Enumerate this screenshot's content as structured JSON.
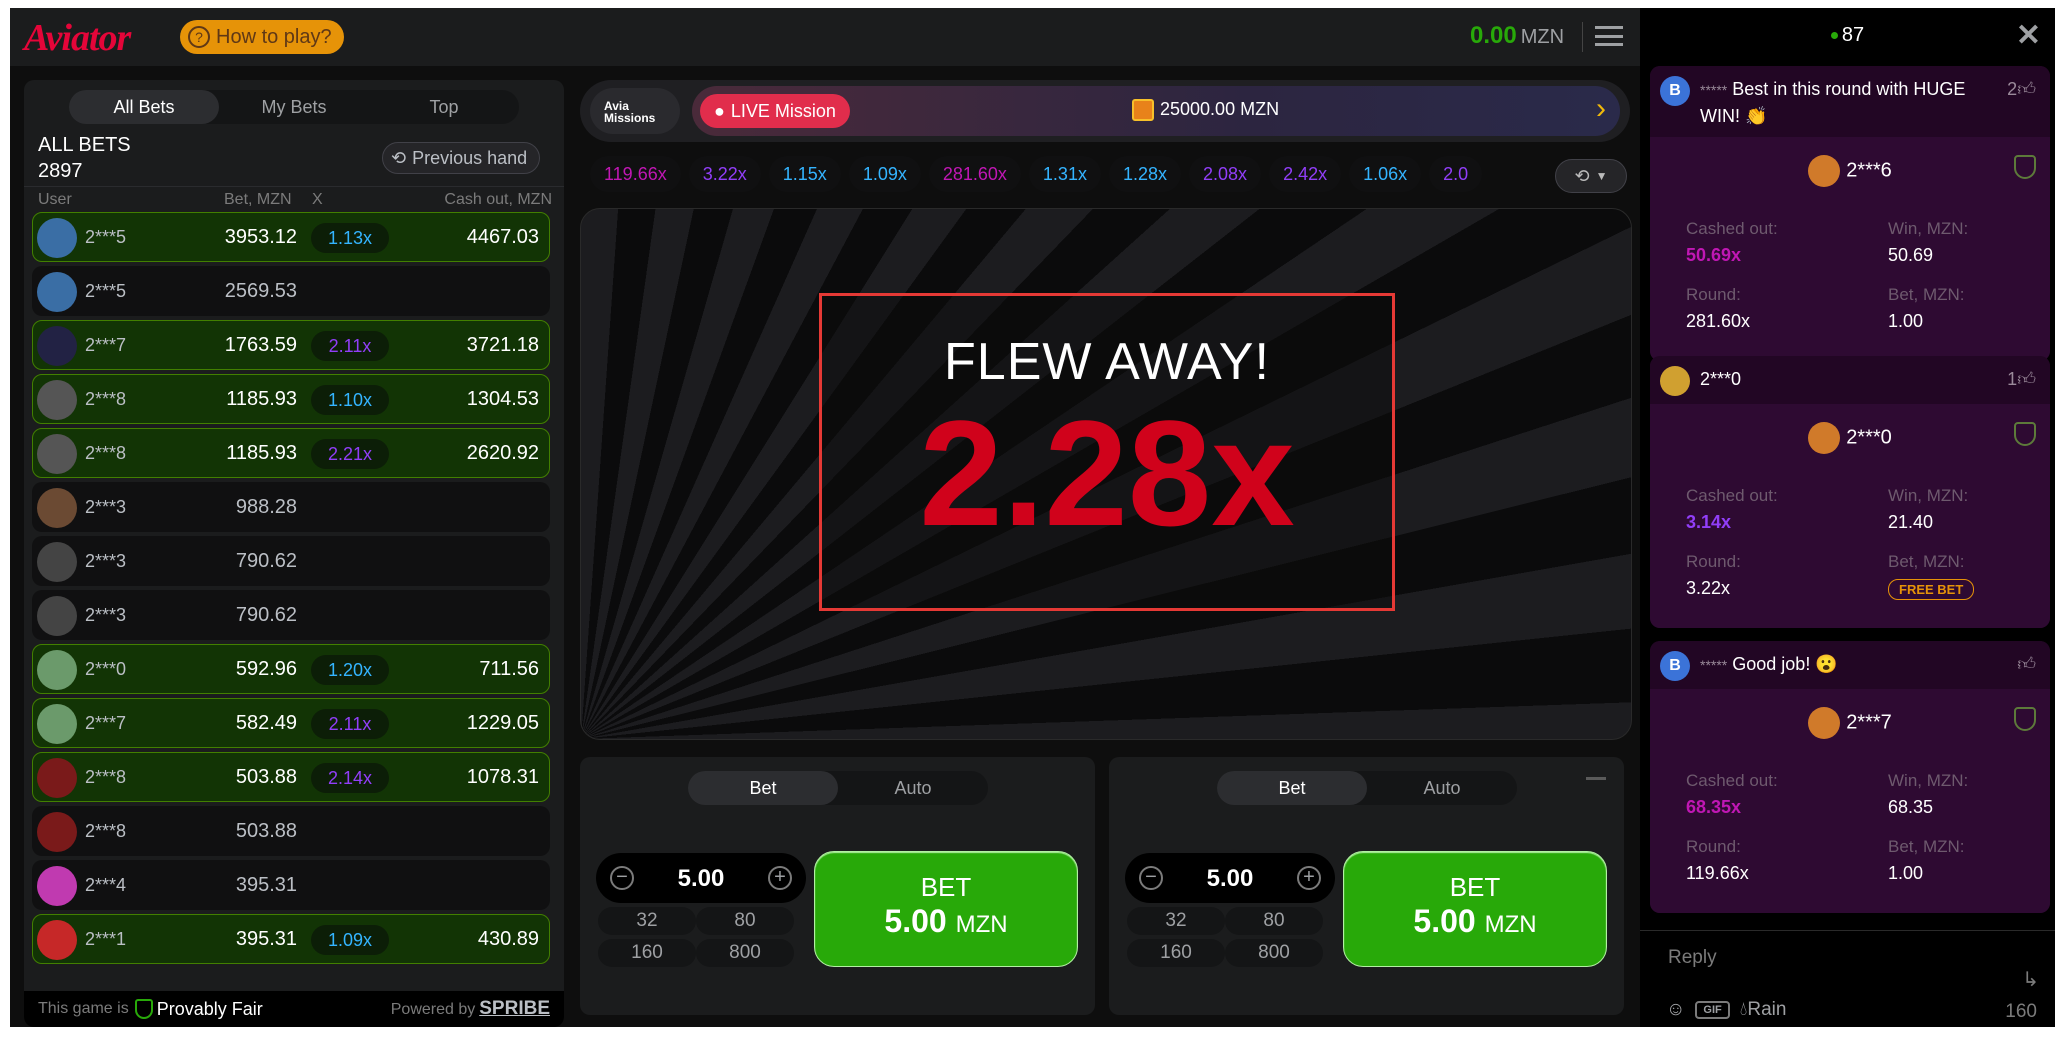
{
  "header": {
    "logo": "Aviator",
    "how_to_play": "How to play?",
    "balance": "0.00",
    "currency": "MZN"
  },
  "bets_panel": {
    "tabs": [
      "All Bets",
      "My Bets",
      "Top"
    ],
    "active_tab": "All Bets",
    "title": "ALL BETS",
    "count": "2897",
    "previous_hand": "Previous hand",
    "columns": {
      "user": "User",
      "bet": "Bet, MZN",
      "x": "X",
      "cashout": "Cash out, MZN"
    },
    "rows": [
      {
        "user": "2***5",
        "bet": "3953.12",
        "x": "1.13x",
        "cashout": "4467.03",
        "avatar": "#3a6ea5"
      },
      {
        "user": "2***5",
        "bet": "2569.53",
        "x": "",
        "cashout": "",
        "avatar": "#3a6ea5"
      },
      {
        "user": "2***7",
        "bet": "1763.59",
        "x": "2.11x",
        "cashout": "3721.18",
        "avatar": "#222244"
      },
      {
        "user": "2***8",
        "bet": "1185.93",
        "x": "1.10x",
        "cashout": "1304.53",
        "avatar": "#555"
      },
      {
        "user": "2***8",
        "bet": "1185.93",
        "x": "2.21x",
        "cashout": "2620.92",
        "avatar": "#555"
      },
      {
        "user": "2***3",
        "bet": "988.28",
        "x": "",
        "cashout": "",
        "avatar": "#6b4a33"
      },
      {
        "user": "2***3",
        "bet": "790.62",
        "x": "",
        "cashout": "",
        "avatar": "#444"
      },
      {
        "user": "2***3",
        "bet": "790.62",
        "x": "",
        "cashout": "",
        "avatar": "#444"
      },
      {
        "user": "2***0",
        "bet": "592.96",
        "x": "1.20x",
        "cashout": "711.56",
        "avatar": "#6b9a6b"
      },
      {
        "user": "2***7",
        "bet": "582.49",
        "x": "2.11x",
        "cashout": "1229.05",
        "avatar": "#6b9a6b"
      },
      {
        "user": "2***8",
        "bet": "503.88",
        "x": "2.14x",
        "cashout": "1078.31",
        "avatar": "#7a1a1a"
      },
      {
        "user": "2***8",
        "bet": "503.88",
        "x": "",
        "cashout": "",
        "avatar": "#7a1a1a"
      },
      {
        "user": "2***4",
        "bet": "395.31",
        "x": "",
        "cashout": "",
        "avatar": "#c03ab0"
      },
      {
        "user": "2***1",
        "bet": "395.31",
        "x": "1.09x",
        "cashout": "430.89",
        "avatar": "#c62828"
      }
    ],
    "footer": {
      "prefix": "This game is",
      "fair": "Provably Fair",
      "powered": "Powered by",
      "brand": "SPRIBE"
    }
  },
  "missions": {
    "logo_line1": "Avia",
    "logo_line2": "Missions",
    "live": "LIVE Mission",
    "prize": "25000.00 MZN"
  },
  "history": [
    "119.66x",
    "3.22x",
    "1.15x",
    "1.09x",
    "281.60x",
    "1.31x",
    "1.28x",
    "2.08x",
    "2.42x",
    "1.06x",
    "2.0"
  ],
  "game": {
    "status": "FLEW AWAY!",
    "multiplier": "2.28x"
  },
  "bet_panels": [
    {
      "tabs": [
        "Bet",
        "Auto"
      ],
      "amount": "5.00",
      "quick": [
        "32",
        "80",
        "160",
        "800"
      ],
      "btn_label": "BET",
      "btn_amount": "5.00",
      "btn_currency": "MZN"
    },
    {
      "tabs": [
        "Bet",
        "Auto"
      ],
      "amount": "5.00",
      "quick": [
        "32",
        "80",
        "160",
        "800"
      ],
      "btn_label": "BET",
      "btn_amount": "5.00",
      "btn_currency": "MZN"
    }
  ],
  "chat": {
    "online": "87",
    "messages": [
      {
        "name": "*****",
        "text": "Best in this round with HUGE WIN! 👏",
        "likes": "2",
        "winner": "2***6",
        "cashed": "50.69x",
        "cashed_color": "#c017b4",
        "win": "50.69",
        "round": "281.60x",
        "bet": "1.00",
        "free": false,
        "avatar": "B"
      },
      {
        "name": "",
        "text": "2***0",
        "likes": "1",
        "winner": "2***0",
        "cashed": "3.14x",
        "cashed_color": "#913ef8",
        "win": "21.40",
        "round": "3.22x",
        "bet": "FREE BET",
        "free": true,
        "avatar": ""
      },
      {
        "name": "*****",
        "text": "Good job! 😮",
        "likes": "",
        "winner": "2***7",
        "cashed": "68.35x",
        "cashed_color": "#c017b4",
        "win": "68.35",
        "round": "119.66x",
        "bet": "1.00",
        "free": false,
        "avatar": "B"
      }
    ],
    "labels": {
      "cashed": "Cashed out:",
      "win": "Win, MZN:",
      "round": "Round:",
      "bet": "Bet, MZN:"
    },
    "reply_placeholder": "Reply",
    "gif": "GIF",
    "rain": "Rain",
    "char_count": "160"
  }
}
